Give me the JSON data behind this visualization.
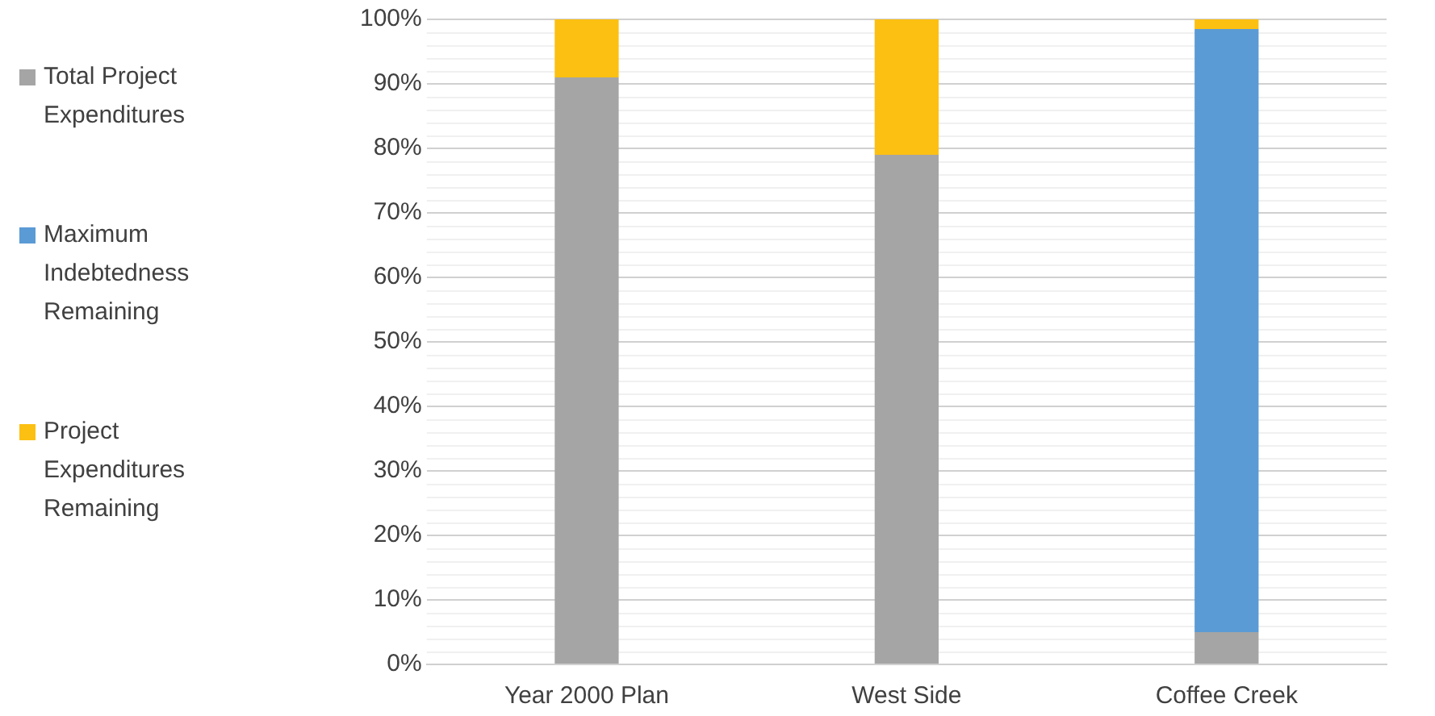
{
  "chart_data": {
    "type": "bar",
    "stacked": true,
    "categories": [
      "Year 2000 Plan",
      "West Side",
      "Coffee Creek"
    ],
    "series": [
      {
        "name": "Total Project Expenditures",
        "color": "#a5a5a5",
        "values": [
          91,
          79,
          5
        ]
      },
      {
        "name": "Maximum Indebtedness Remaining",
        "color": "#5b9bd5",
        "values": [
          0,
          0,
          93.5
        ]
      },
      {
        "name": "Project Expenditures Remaining",
        "color": "#fcc012",
        "values": [
          9,
          21,
          1.5
        ]
      }
    ],
    "ylim": [
      0,
      100
    ],
    "yticks": [
      {
        "value": 0,
        "label": "0%"
      },
      {
        "value": 10,
        "label": "10%"
      },
      {
        "value": 20,
        "label": "20%"
      },
      {
        "value": 30,
        "label": "30%"
      },
      {
        "value": 40,
        "label": "40%"
      },
      {
        "value": 50,
        "label": "50%"
      },
      {
        "value": 60,
        "label": "60%"
      },
      {
        "value": 70,
        "label": "70%"
      },
      {
        "value": 80,
        "label": "80%"
      },
      {
        "value": 90,
        "label": "90%"
      },
      {
        "value": 100,
        "label": "100%"
      }
    ],
    "grid": true,
    "legend": "left"
  }
}
